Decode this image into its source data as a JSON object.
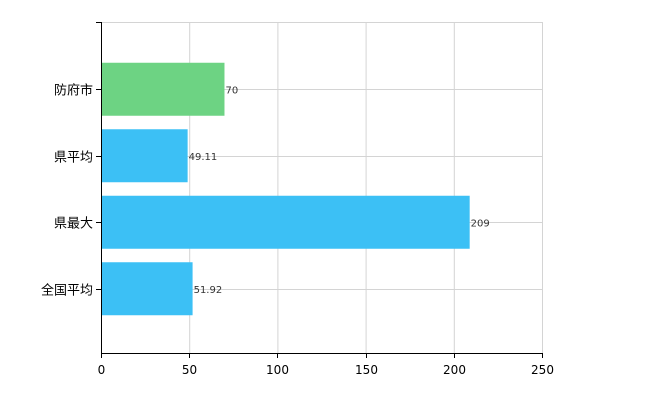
{
  "chart_data": {
    "type": "bar",
    "orientation": "horizontal",
    "categories": [
      "防府市",
      "県平均",
      "県最大",
      "全国平均"
    ],
    "values": [
      70,
      49.11,
      209,
      51.92
    ],
    "value_labels": [
      "70",
      "49.11",
      "209",
      "51.92"
    ],
    "bar_colors": [
      "#6dd383",
      "#3cc0f5",
      "#3cc0f5",
      "#3cc0f5"
    ],
    "xlim": [
      0,
      250
    ],
    "xticks": [
      0,
      50,
      100,
      150,
      200,
      250
    ],
    "xtick_labels": [
      "0",
      "50",
      "100",
      "150",
      "200",
      "250"
    ],
    "grid": true,
    "legend": false
  }
}
